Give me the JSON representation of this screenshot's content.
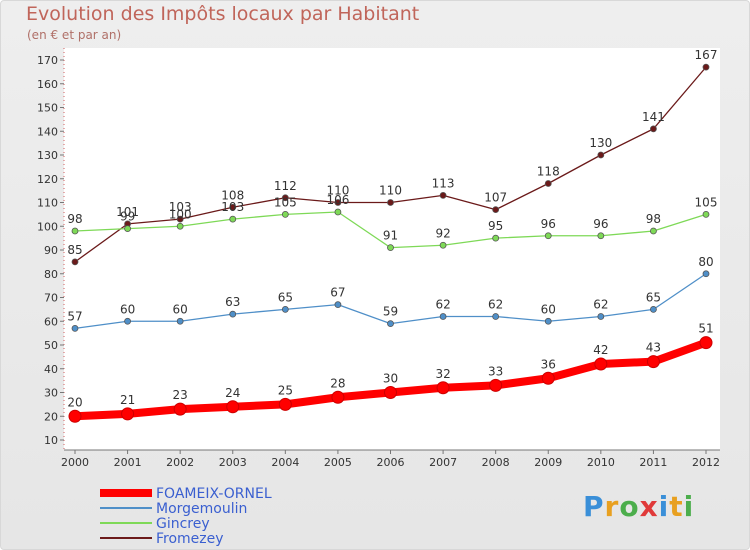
{
  "title": "Evolution des Impôts locaux par Habitant",
  "subtitle": "(en € et par an)",
  "logo": {
    "text": "Proxiti",
    "letters": [
      "P",
      "r",
      "o",
      "x",
      "i",
      "t",
      "i"
    ],
    "colors": [
      "#3a8fd8",
      "#e8a020",
      "#4cae4c",
      "#e03a3a",
      "#3a8fd8",
      "#e8a020",
      "#4cae4c"
    ]
  },
  "chart_data": {
    "type": "line",
    "categories": [
      "2000",
      "2001",
      "2002",
      "2003",
      "2004",
      "2005",
      "2006",
      "2007",
      "2008",
      "2009",
      "2010",
      "2011",
      "2012"
    ],
    "ylim": [
      10,
      170
    ],
    "yticks": [
      10,
      20,
      30,
      40,
      50,
      60,
      70,
      80,
      90,
      100,
      110,
      120,
      130,
      140,
      150,
      160,
      170
    ],
    "grid": false,
    "legend_position": "bottom-left",
    "series": [
      {
        "name": "FOAMEIX-ORNEL",
        "color": "#ff0000",
        "values": [
          20,
          21,
          23,
          24,
          25,
          28,
          30,
          32,
          33,
          36,
          42,
          43,
          51
        ]
      },
      {
        "name": "Morgemoulin",
        "color": "#4f8fc8",
        "values": [
          57,
          60,
          60,
          63,
          65,
          67,
          59,
          62,
          62,
          60,
          62,
          65,
          80
        ]
      },
      {
        "name": "Gincrey",
        "color": "#7ed957",
        "values": [
          98,
          99,
          100,
          103,
          105,
          106,
          91,
          92,
          95,
          96,
          96,
          98,
          105
        ]
      },
      {
        "name": "Fromezey",
        "color": "#6b1a1a",
        "values": [
          85,
          101,
          103,
          108,
          112,
          110,
          110,
          113,
          107,
          118,
          130,
          141,
          167
        ]
      }
    ]
  }
}
